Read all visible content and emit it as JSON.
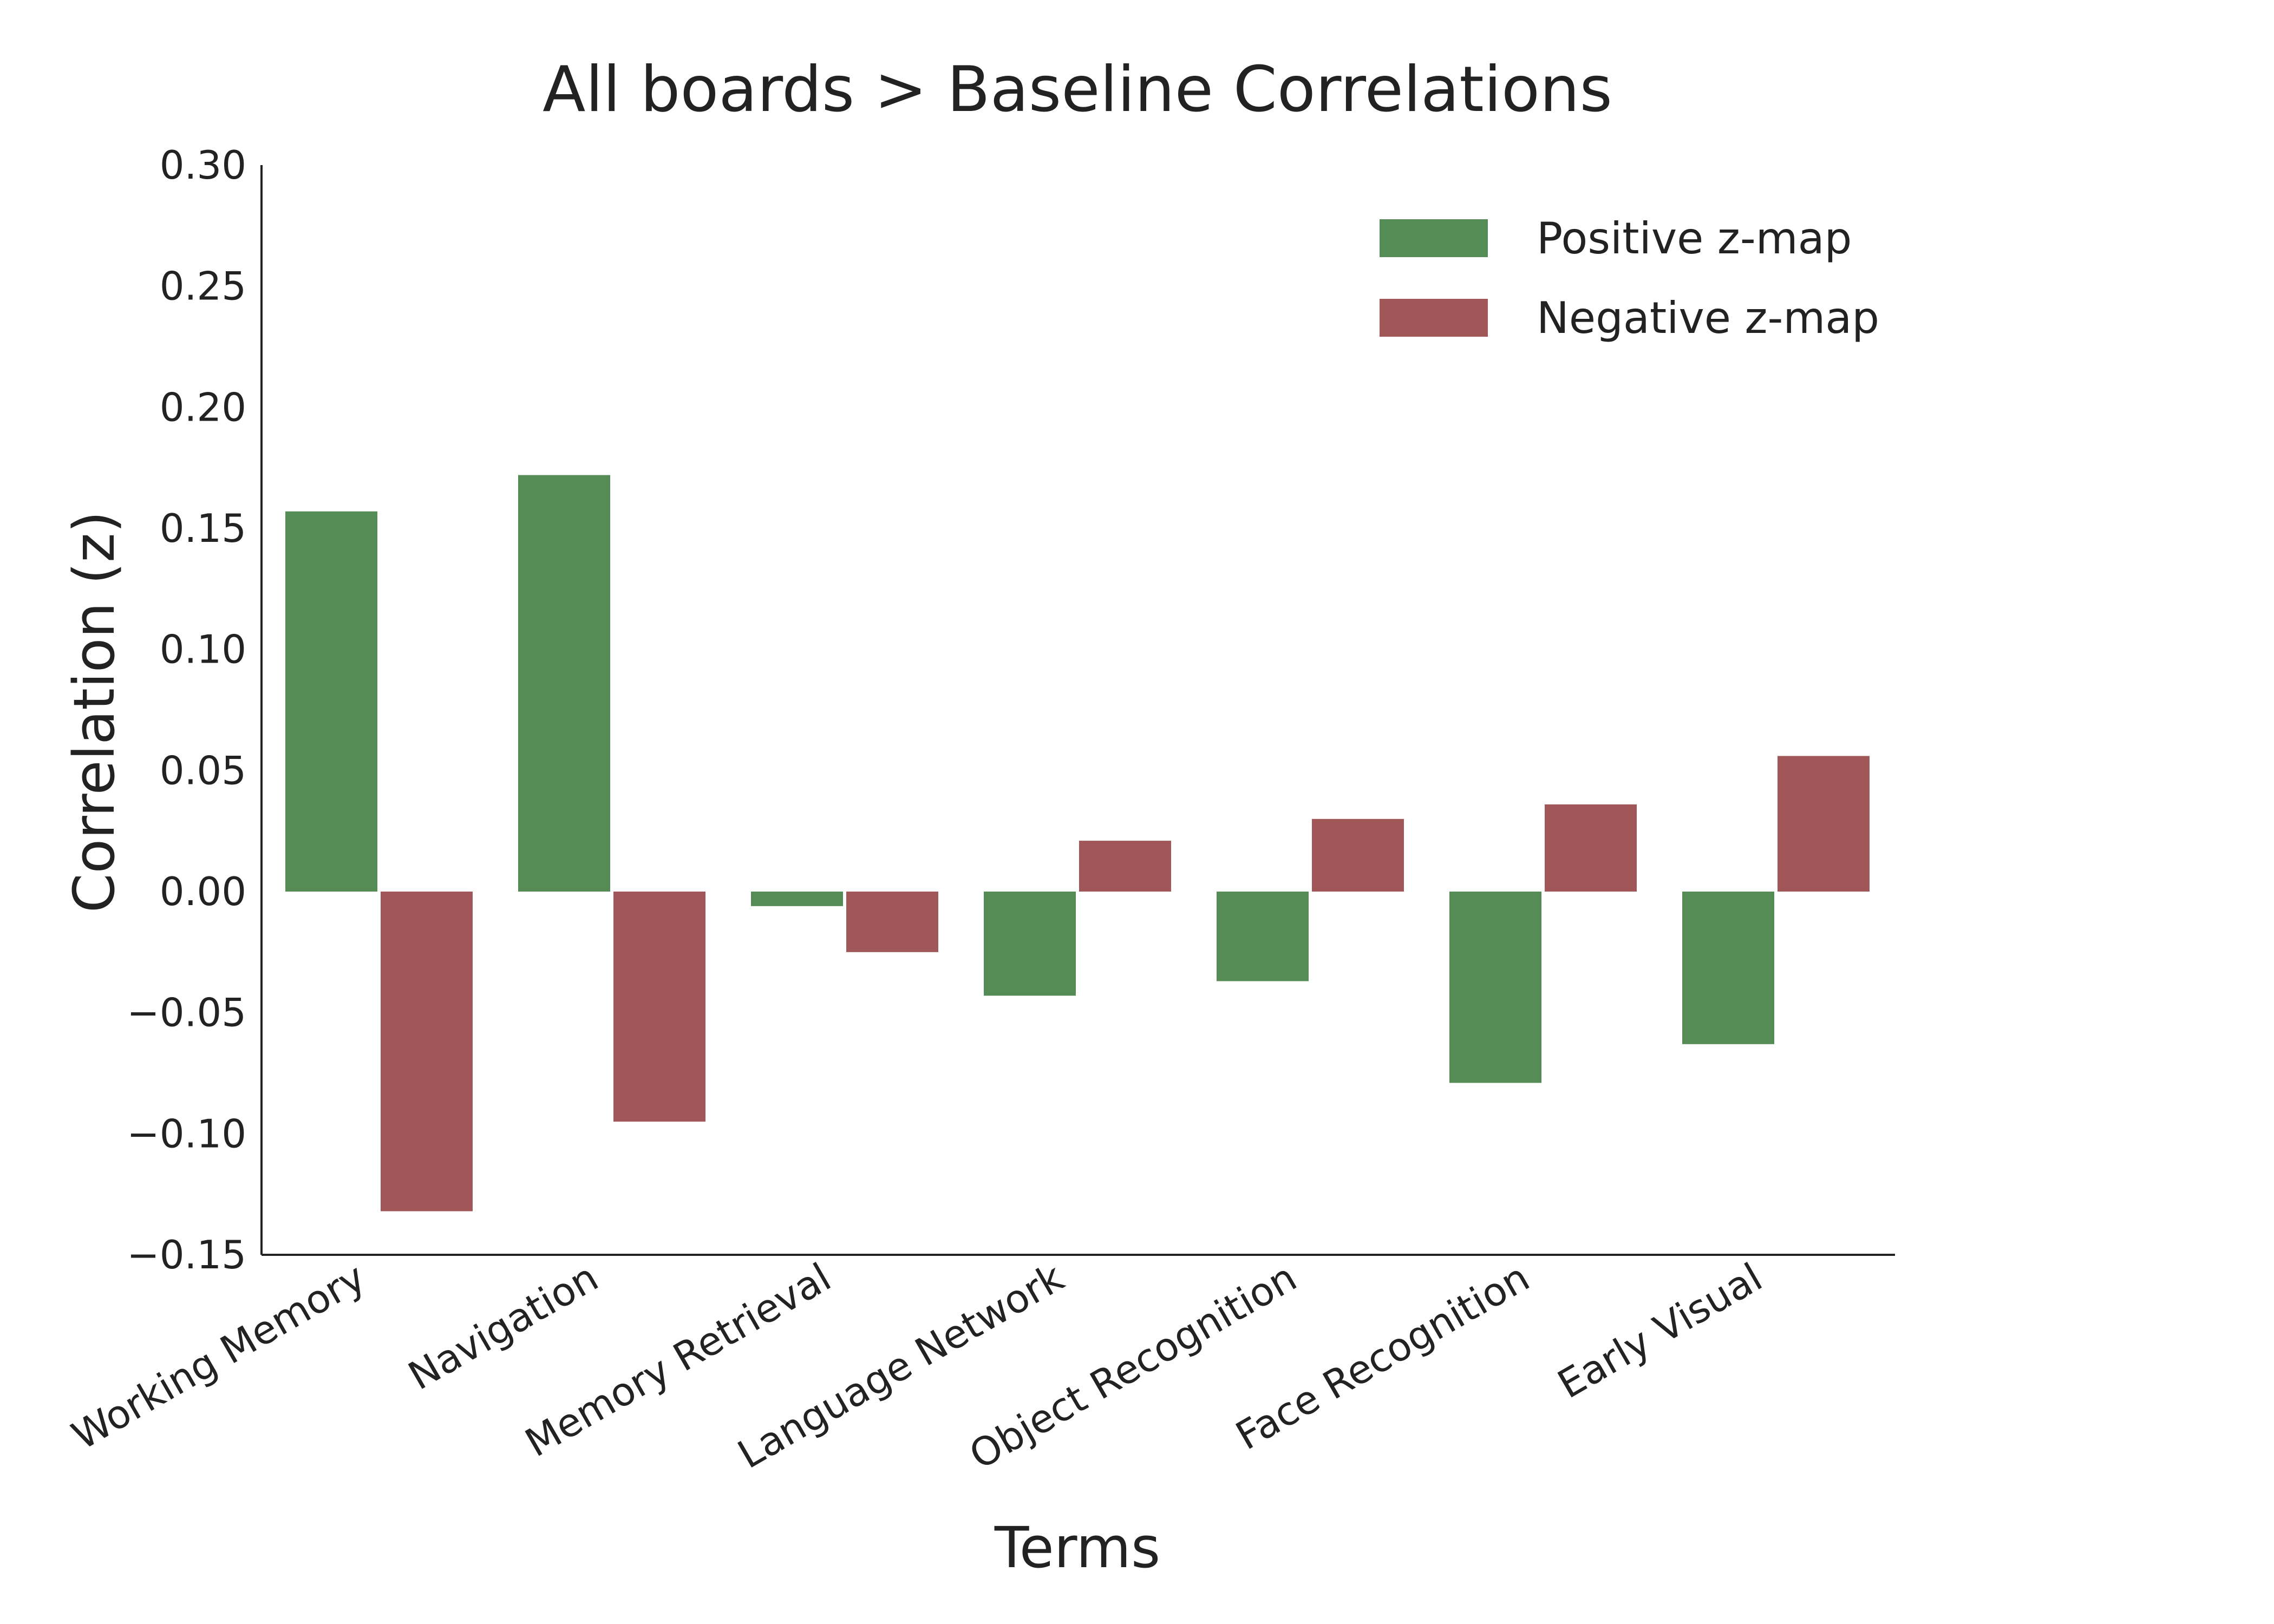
{
  "chart_data": {
    "type": "bar",
    "title": "All boards > Baseline Correlations",
    "xlabel": "Terms",
    "ylabel": "Correlation (z)",
    "ylim": [
      -0.15,
      0.3
    ],
    "yticks": [
      0.3,
      0.25,
      0.2,
      0.15,
      0.1,
      0.05,
      0.0,
      -0.05,
      -0.1,
      -0.15
    ],
    "ytick_labels": [
      "0.30",
      "0.25",
      "0.20",
      "0.15",
      "0.10",
      "0.05",
      "0.00",
      "−0.05",
      "−0.10",
      "−0.15"
    ],
    "categories": [
      "Working Memory",
      "Navigation",
      "Memory Retrieval",
      "Language Network",
      "Object Recognition",
      "Face Recognition",
      "Early Visual"
    ],
    "series": [
      {
        "name": "Positive z-map",
        "color": "#558b55",
        "values": [
          0.157,
          0.172,
          -0.006,
          -0.043,
          -0.037,
          -0.079,
          -0.063
        ]
      },
      {
        "name": "Negative z-map",
        "color": "#a15757",
        "values": [
          -0.132,
          -0.095,
          -0.025,
          0.021,
          0.03,
          0.036,
          0.056
        ]
      }
    ],
    "grid": false,
    "legend_position": "top-right"
  }
}
